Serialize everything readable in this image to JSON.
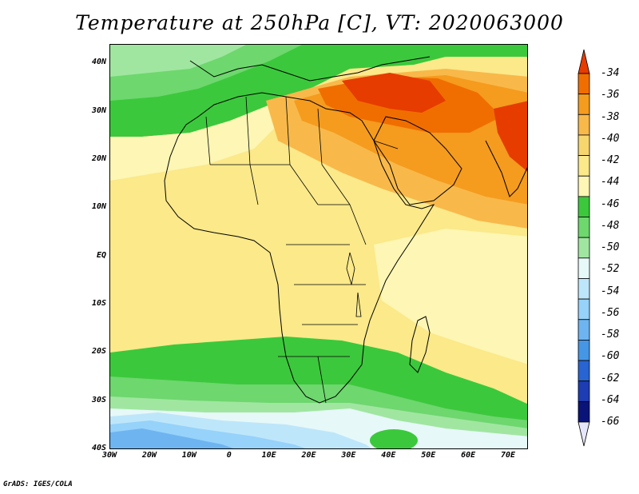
{
  "title": "Temperature at 250hPa [C], VT: 2020063000",
  "footer": "GrADS: IGES/COLA",
  "axes": {
    "lat_labels": [
      "40N",
      "30N",
      "20N",
      "10N",
      "EQ",
      "10S",
      "20S",
      "30S",
      "40S"
    ],
    "lon_labels": [
      "30W",
      "20W",
      "10W",
      "0",
      "10E",
      "20E",
      "30E",
      "40E",
      "50E",
      "60E",
      "70E"
    ],
    "lat_range": [
      -40,
      44
    ],
    "lon_range": [
      -30,
      75
    ]
  },
  "colorbar": {
    "levels": [
      "-34",
      "-36",
      "-38",
      "-40",
      "-42",
      "-44",
      "-46",
      "-48",
      "-50",
      "-52",
      "-54",
      "-56",
      "-58",
      "-60",
      "-62",
      "-64",
      "-66"
    ],
    "colors": [
      "#e63c00",
      "#f06e00",
      "#f59b1e",
      "#f8b94a",
      "#f8d66e",
      "#fbe98a",
      "#fdf6b4",
      "#3cc83c",
      "#6ed76e",
      "#a0e6a0",
      "#e6f8f8",
      "#bee6fa",
      "#96d2fa",
      "#6eb4f0",
      "#4696e6",
      "#2864d2",
      "#1e3cb4",
      "#0a1478",
      "#e6e6fa"
    ]
  }
}
